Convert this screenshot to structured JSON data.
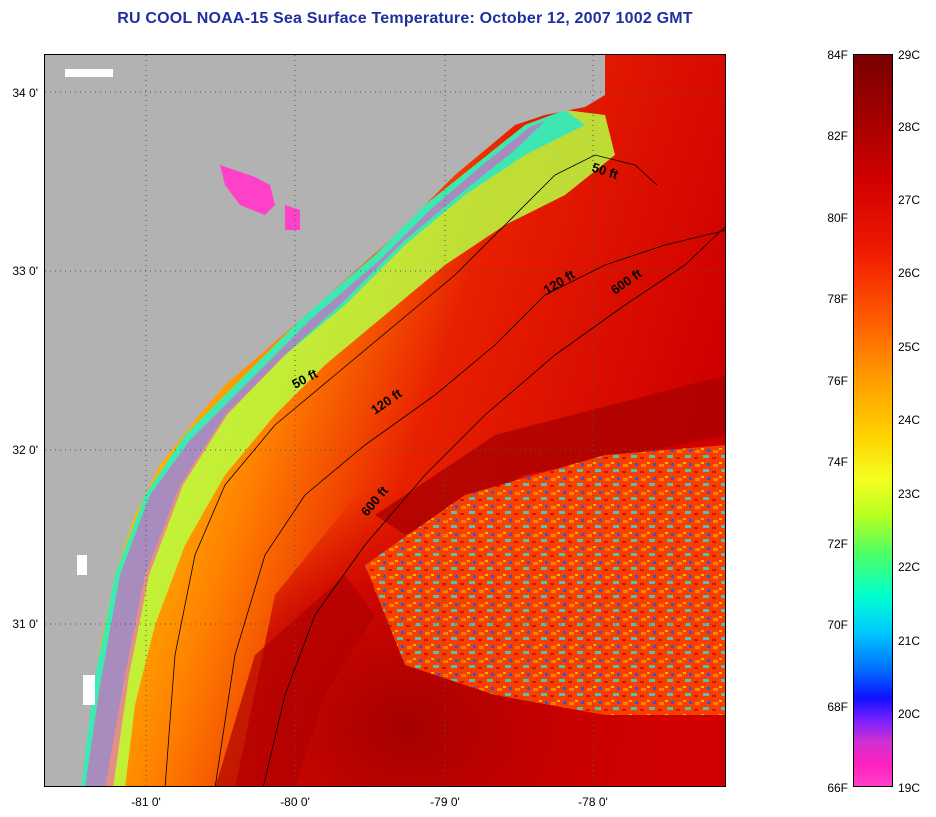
{
  "title": "RU COOL  NOAA-15  Sea Surface Temperature:  October 12, 2007 1002 GMT",
  "axes": {
    "lat_labels": [
      "34 0'",
      "33 0'",
      "32 0'",
      "31 0'"
    ],
    "lon_labels": [
      "-81 0'",
      "-80 0'",
      "-79 0'",
      "-78 0'"
    ]
  },
  "contours": {
    "fifty_a": "50 ft",
    "fifty_b": "50 ft",
    "onetwenty_a": "120 ft",
    "onetwenty_b": "120 ft",
    "sixhundred_a": "600 ft",
    "sixhundred_b": "600 ft"
  },
  "legend": {
    "fahrenheit": [
      "84F",
      "82F",
      "80F",
      "78F",
      "76F",
      "74F",
      "72F",
      "70F",
      "68F",
      "66F"
    ],
    "celsius": [
      "29C",
      "28C",
      "27C",
      "26C",
      "25C",
      "24C",
      "23C",
      "22C",
      "21C",
      "20C",
      "19C"
    ]
  },
  "colors": {
    "land": "#b2b2b2",
    "warm": "#d80000",
    "cool": "#ff40c8"
  }
}
